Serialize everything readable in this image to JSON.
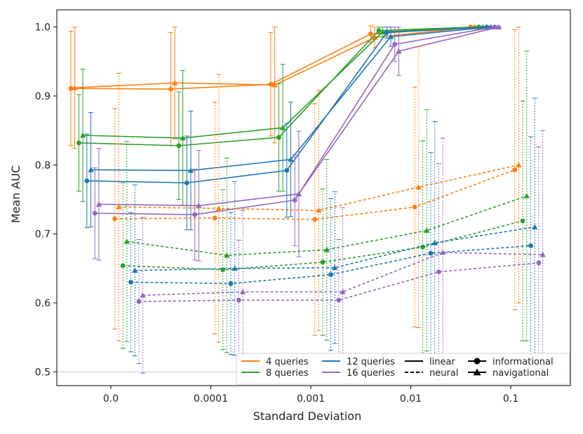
{
  "chart_data": {
    "type": "line",
    "xlabel": "Standard Deviation",
    "ylabel": "Mean AUC",
    "categories": [
      "0.0",
      "0.0001",
      "0.001",
      "0.01",
      "0.1"
    ],
    "ylim": [
      0.48,
      1.025
    ],
    "yticks": [
      "0.5",
      "0.6",
      "0.7",
      "0.8",
      "0.9",
      "1.0"
    ],
    "reference_line": 0.5,
    "legend": {
      "queries": [
        {
          "label": "4 queries",
          "color": "#ff7f0e"
        },
        {
          "label": "8 queries",
          "color": "#2ca02c"
        },
        {
          "label": "12 queries",
          "color": "#1f77b4"
        },
        {
          "label": "16 queries",
          "color": "#9467bd"
        }
      ],
      "styles": [
        {
          "label": "linear",
          "dash": "solid"
        },
        {
          "label": "neural",
          "dash": "dashed"
        }
      ],
      "markers": [
        {
          "label": "informational",
          "shape": "circle"
        },
        {
          "label": "navigational",
          "shape": "triangle"
        }
      ],
      "position": "lower-right"
    },
    "series": [
      {
        "name": "4 queries linear informational",
        "queries": 4,
        "model": "linear",
        "type": "informational",
        "color": "#ff7f0e",
        "offset": -0.4,
        "values": [
          0.911,
          0.91,
          0.917,
          0.99,
          1.0
        ],
        "err": [
          0.083,
          0.082,
          0.075,
          0.012,
          0.001
        ]
      },
      {
        "name": "4 queries linear navigational",
        "queries": 4,
        "model": "linear",
        "type": "navigational",
        "color": "#ff7f0e",
        "offset": -0.36,
        "values": [
          0.912,
          0.919,
          0.916,
          0.985,
          1.0
        ],
        "err": [
          0.088,
          0.081,
          0.084,
          0.015,
          0.001
        ]
      },
      {
        "name": "8 queries linear informational",
        "queries": 8,
        "model": "linear",
        "type": "informational",
        "color": "#2ca02c",
        "offset": -0.32,
        "values": [
          0.832,
          0.828,
          0.84,
          0.995,
          1.0
        ],
        "err": [
          0.07,
          0.078,
          0.078,
          0.005,
          0.001
        ]
      },
      {
        "name": "8 queries linear navigational",
        "queries": 8,
        "model": "linear",
        "type": "navigational",
        "color": "#2ca02c",
        "offset": -0.28,
        "values": [
          0.843,
          0.839,
          0.854,
          0.993,
          1.0
        ],
        "err": [
          0.096,
          0.098,
          0.092,
          0.007,
          0.001
        ]
      },
      {
        "name": "12 queries linear informational",
        "queries": 12,
        "model": "linear",
        "type": "informational",
        "color": "#1f77b4",
        "offset": -0.24,
        "values": [
          0.777,
          0.774,
          0.792,
          0.992,
          1.0
        ],
        "err": [
          0.068,
          0.068,
          0.068,
          0.008,
          0.001
        ]
      },
      {
        "name": "12 queries linear navigational",
        "queries": 12,
        "model": "linear",
        "type": "navigational",
        "color": "#1f77b4",
        "offset": -0.2,
        "values": [
          0.793,
          0.792,
          0.808,
          0.986,
          1.0
        ],
        "err": [
          0.083,
          0.086,
          0.083,
          0.014,
          0.001
        ]
      },
      {
        "name": "16 queries linear informational",
        "queries": 16,
        "model": "linear",
        "type": "informational",
        "color": "#9467bd",
        "offset": -0.16,
        "values": [
          0.73,
          0.728,
          0.749,
          0.975,
          1.0
        ],
        "err": [
          0.066,
          0.066,
          0.066,
          0.025,
          0.001
        ]
      },
      {
        "name": "16 queries linear navigational",
        "queries": 16,
        "model": "linear",
        "type": "navigational",
        "color": "#9467bd",
        "offset": -0.12,
        "values": [
          0.743,
          0.741,
          0.758,
          0.965,
          1.0
        ],
        "err": [
          0.081,
          0.08,
          0.091,
          0.035,
          0.001
        ]
      },
      {
        "name": "4 queries neural informational",
        "queries": 4,
        "model": "neural",
        "type": "informational",
        "color": "#ff7f0e",
        "offset": 0.04,
        "values": [
          0.722,
          0.723,
          0.721,
          0.739,
          0.793
        ],
        "err": [
          0.16,
          0.168,
          0.168,
          0.174,
          0.203
        ]
      },
      {
        "name": "4 queries neural navigational",
        "queries": 4,
        "model": "neural",
        "type": "navigational",
        "color": "#ff7f0e",
        "offset": 0.08,
        "values": [
          0.739,
          0.737,
          0.734,
          0.768,
          0.8
        ],
        "err": [
          0.194,
          0.194,
          0.174,
          0.204,
          0.2
        ]
      },
      {
        "name": "8 queries neural informational",
        "queries": 8,
        "model": "neural",
        "type": "informational",
        "color": "#2ca02c",
        "offset": 0.12,
        "values": [
          0.654,
          0.648,
          0.659,
          0.681,
          0.719
        ],
        "err": [
          0.12,
          0.116,
          0.106,
          0.154,
          0.174
        ]
      },
      {
        "name": "8 queries neural navigational",
        "queries": 8,
        "model": "neural",
        "type": "navigational",
        "color": "#2ca02c",
        "offset": 0.16,
        "values": [
          0.689,
          0.669,
          0.677,
          0.705,
          0.755
        ],
        "err": [
          0.145,
          0.141,
          0.131,
          0.175,
          0.21
        ]
      },
      {
        "name": "12 queries neural informational",
        "queries": 12,
        "model": "neural",
        "type": "informational",
        "color": "#1f77b4",
        "offset": 0.2,
        "values": [
          0.63,
          0.628,
          0.641,
          0.672,
          0.683
        ],
        "err": [
          0.101,
          0.103,
          0.11,
          0.146,
          0.158
        ]
      },
      {
        "name": "12 queries neural navigational",
        "queries": 12,
        "model": "neural",
        "type": "navigational",
        "color": "#1f77b4",
        "offset": 0.24,
        "values": [
          0.647,
          0.65,
          0.651,
          0.687,
          0.71
        ],
        "err": [
          0.124,
          0.126,
          0.11,
          0.176,
          0.187
        ]
      },
      {
        "name": "16 queries neural informational",
        "queries": 16,
        "model": "neural",
        "type": "informational",
        "color": "#9467bd",
        "offset": 0.28,
        "values": [
          0.602,
          0.604,
          0.604,
          0.645,
          0.658
        ],
        "err": [
          0.09,
          0.087,
          0.088,
          0.157,
          0.168
        ]
      },
      {
        "name": "16 queries neural navigational",
        "queries": 16,
        "model": "neural",
        "type": "navigational",
        "color": "#9467bd",
        "offset": 0.32,
        "values": [
          0.611,
          0.616,
          0.616,
          0.673,
          0.67
        ],
        "err": [
          0.113,
          0.118,
          0.122,
          0.166,
          0.18
        ]
      }
    ]
  }
}
